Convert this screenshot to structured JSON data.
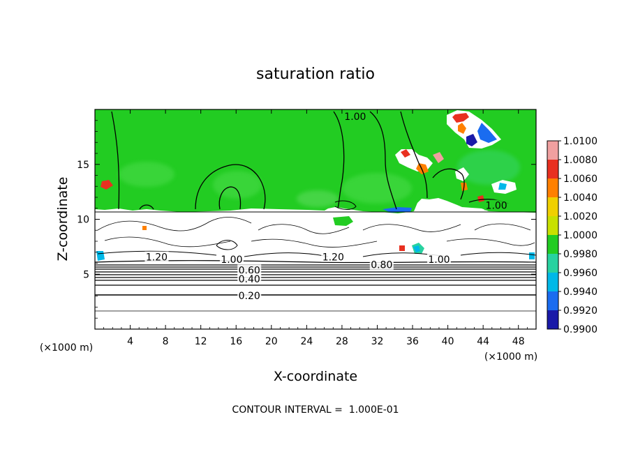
{
  "chart_data": {
    "type": "heatmap",
    "title": "saturation ratio",
    "xlabel": "X-coordinate",
    "ylabel": "Z-coordinate",
    "x_unit_label": "(×1000 m)",
    "z_unit_label": "(×1000 m)",
    "x_range": [
      0,
      50
    ],
    "z_range": [
      0,
      20
    ],
    "x_ticks": [
      "4",
      "8",
      "12",
      "16",
      "20",
      "24",
      "28",
      "32",
      "36",
      "40",
      "44",
      "48"
    ],
    "z_ticks": [
      "5",
      "10",
      "15"
    ],
    "colorbar": {
      "levels": [
        "1.0100",
        "1.0080",
        "1.0060",
        "1.0040",
        "1.0020",
        "1.0000",
        "0.9980",
        "0.9960",
        "0.9940",
        "0.9920",
        "0.9900"
      ],
      "colors": [
        "#f0a0a0",
        "#e83020",
        "#ff8000",
        "#f0d000",
        "#c8e000",
        "#22cc22",
        "#28d2a0",
        "#00b8e8",
        "#1a6cf0",
        "#1a1aa8",
        "#6020a0"
      ]
    },
    "background_color": "#ffffff",
    "dominant_color": "#22cc22",
    "contour_labels": [
      {
        "text": "1.00",
        "x": 29.5,
        "z": 19.3
      },
      {
        "text": "1.00",
        "x": 45.5,
        "z": 11.2
      },
      {
        "text": "1.20",
        "x": 7.0,
        "z": 6.5
      },
      {
        "text": "1.00",
        "x": 15.5,
        "z": 6.3
      },
      {
        "text": "1.20",
        "x": 27.0,
        "z": 6.5
      },
      {
        "text": "0.80",
        "x": 32.5,
        "z": 5.8
      },
      {
        "text": "1.00",
        "x": 39.0,
        "z": 6.3
      },
      {
        "text": "0.60",
        "x": 17.5,
        "z": 5.3
      },
      {
        "text": "0.40",
        "x": 17.5,
        "z": 4.5
      },
      {
        "text": "0.20",
        "x": 17.5,
        "z": 3.0
      }
    ],
    "contour_interval_text": "CONTOUR INTERVAL =  1.000E-01"
  }
}
